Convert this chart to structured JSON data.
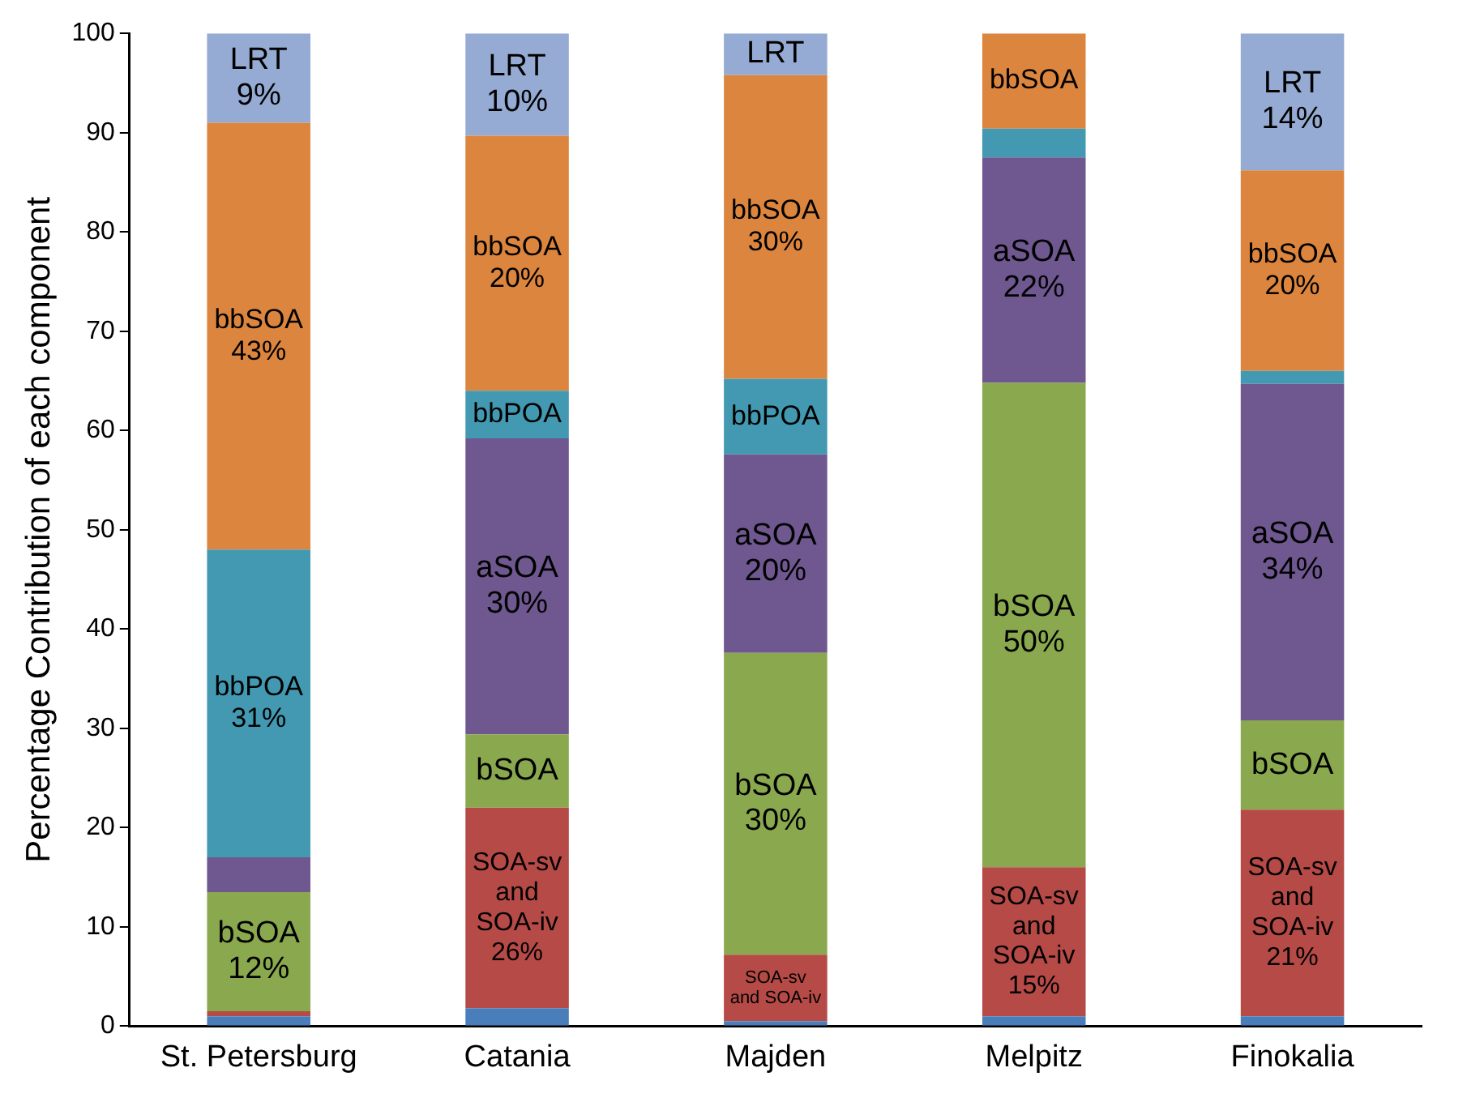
{
  "chart_data": {
    "type": "bar",
    "stacked": true,
    "ylabel": "Percentage Contribution of each component",
    "categories": [
      "St. Petersburg",
      "Catania",
      "Majden",
      "Melpitz",
      "Finokalia"
    ],
    "ylim": [
      0,
      100
    ],
    "yticks": [
      0,
      10,
      20,
      30,
      40,
      50,
      60,
      70,
      80,
      90,
      100
    ],
    "grid": false,
    "legend": false,
    "series": [
      {
        "color": "#4a7ebb",
        "values": [
          1,
          1.8,
          0.5,
          1,
          1
        ]
      },
      {
        "color": "#b54a47",
        "values": [
          0.5,
          20.2,
          6.7,
          15,
          20.8
        ],
        "value_labels": [
          null,
          "SOA-sv\nand\nSOA-iv\n26%",
          "SOA-sv\nand SOA-iv",
          "SOA-sv\nand\nSOA-iv\n15%",
          "SOA-sv\nand\nSOA-iv\n21%"
        ]
      },
      {
        "color": "#8aa94e",
        "values": [
          12,
          7.4,
          30.4,
          48.8,
          9
        ],
        "value_labels": [
          "bSOA\n12%",
          "bSOA",
          "bSOA\n30%",
          "bSOA\n50%",
          "bSOA"
        ]
      },
      {
        "color": "#6f578f",
        "values": [
          3.5,
          29.8,
          20,
          22.7,
          33.9
        ],
        "value_labels": [
          null,
          "aSOA\n30%",
          "aSOA\n20%",
          "aSOA\n22%",
          "aSOA\n34%"
        ]
      },
      {
        "color": "#4299b1",
        "values": [
          31,
          4.8,
          7.6,
          2.9,
          1.3
        ],
        "value_labels": [
          "bbPOA\n31%",
          "bbPOA",
          "bbPOA",
          null,
          null
        ]
      },
      {
        "color": "#dc853e",
        "values": [
          43,
          25.7,
          30.6,
          9.6,
          20.2
        ],
        "value_labels": [
          "bbSOA\n43%",
          "bbSOA\n20%",
          "bbSOA\n30%",
          "bbSOA",
          "bbSOA\n20%"
        ]
      },
      {
        "color": "#95abd3",
        "values": [
          9,
          10.3,
          4.2,
          0,
          13.8
        ],
        "value_labels": [
          "LRT\n9%",
          "LRT\n10%",
          "LRT",
          null,
          "LRT\n14%"
        ]
      }
    ]
  }
}
